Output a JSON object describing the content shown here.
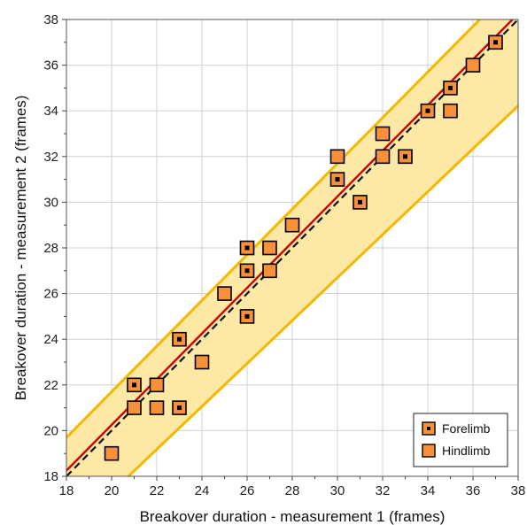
{
  "chart_data": {
    "type": "scatter",
    "title": "",
    "xlabel": "Breakover duration - measurement 1 (frames)",
    "ylabel": "Breakover duration -  measurement 2 (frames)",
    "xlim": [
      18,
      38
    ],
    "ylim": [
      18,
      38
    ],
    "x_ticks": [
      "18",
      "20",
      "22",
      "24",
      "26",
      "28",
      "30",
      "32",
      "34",
      "36",
      "38"
    ],
    "y_ticks": [
      "18",
      "20",
      "22",
      "24",
      "26",
      "28",
      "30",
      "32",
      "34",
      "36",
      "38"
    ],
    "grid": true,
    "legend_position": "bottom-right",
    "series": [
      {
        "name": "Forelimb",
        "marker": "square-with-center-dot",
        "points": [
          {
            "x": 21,
            "y": 22
          },
          {
            "x": 23,
            "y": 24
          },
          {
            "x": 23,
            "y": 21
          },
          {
            "x": 26,
            "y": 28
          },
          {
            "x": 26,
            "y": 27
          },
          {
            "x": 26,
            "y": 25
          },
          {
            "x": 30,
            "y": 31
          },
          {
            "x": 31,
            "y": 30
          },
          {
            "x": 33,
            "y": 32
          },
          {
            "x": 34,
            "y": 34
          },
          {
            "x": 35,
            "y": 35
          },
          {
            "x": 37,
            "y": 37
          }
        ]
      },
      {
        "name": "Hindlimb",
        "marker": "square",
        "points": [
          {
            "x": 20,
            "y": 19
          },
          {
            "x": 21,
            "y": 21
          },
          {
            "x": 22,
            "y": 22
          },
          {
            "x": 22,
            "y": 21
          },
          {
            "x": 24,
            "y": 23
          },
          {
            "x": 25,
            "y": 26
          },
          {
            "x": 27,
            "y": 28
          },
          {
            "x": 27,
            "y": 27
          },
          {
            "x": 28,
            "y": 29
          },
          {
            "x": 30,
            "y": 32
          },
          {
            "x": 32,
            "y": 33
          },
          {
            "x": 32,
            "y": 32
          },
          {
            "x": 35,
            "y": 34
          },
          {
            "x": 36,
            "y": 36
          }
        ]
      }
    ],
    "lines": {
      "regression": {
        "slope": 1.0,
        "intercept": 0.25
      },
      "identity": {
        "slope": 1.0,
        "intercept": 0.0
      },
      "band_upper": {
        "slope": 1.0,
        "intercept": 1.7
      },
      "band_lower": {
        "slope": 0.94,
        "intercept": -1.5
      }
    },
    "colors": {
      "band_fill": "#fde8a6",
      "band_edge": "#f5b800",
      "regression": "#cc0000",
      "identity": "#111111",
      "marker_fill": "#f7903a",
      "marker_edge": "#000000",
      "grid": "#d0d0d0"
    }
  }
}
